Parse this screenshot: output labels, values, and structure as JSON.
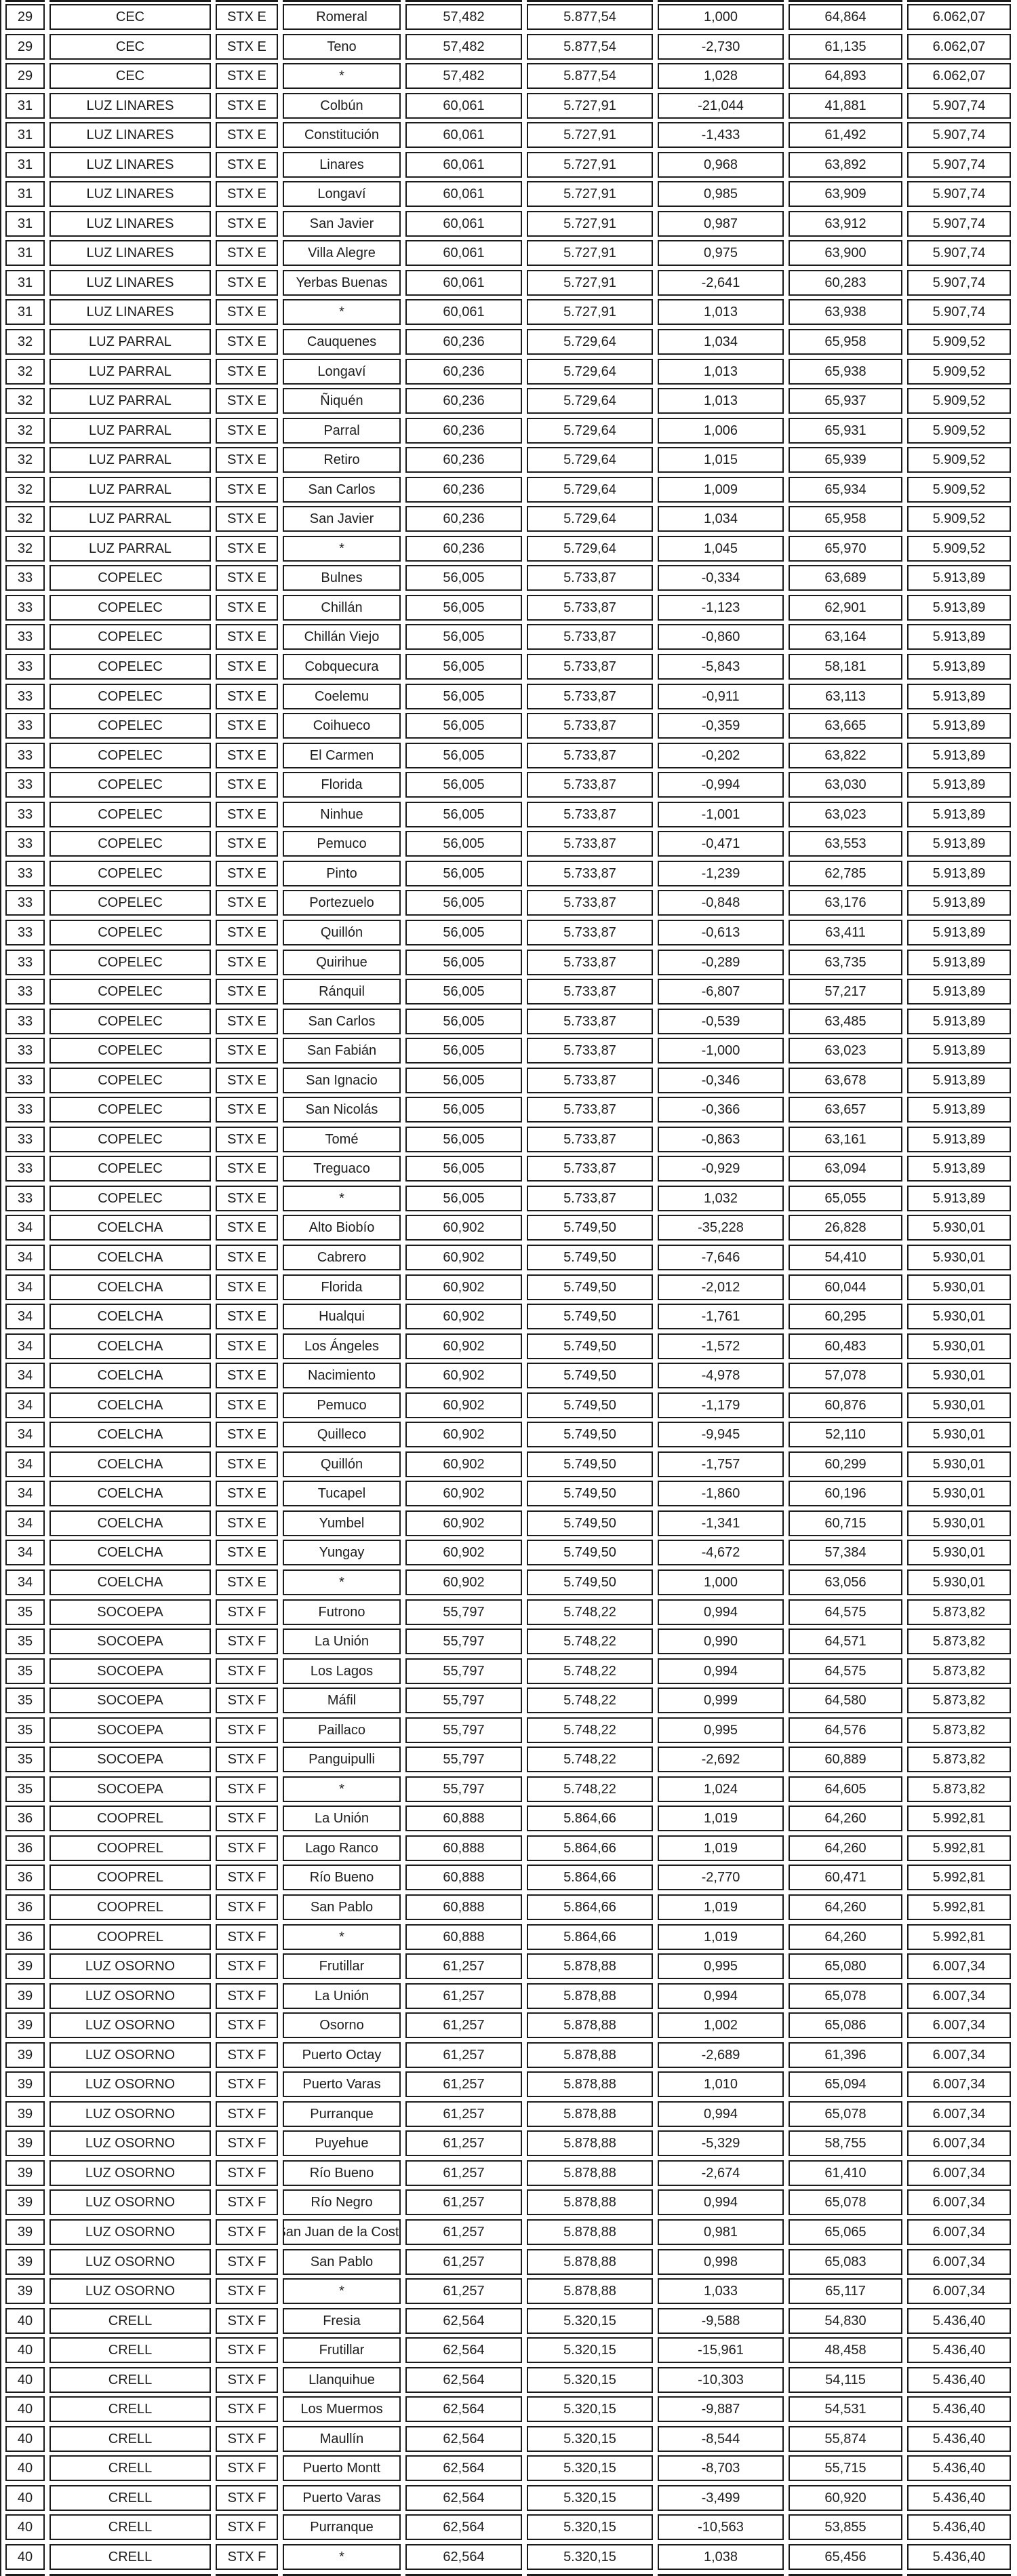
{
  "table": {
    "groups": [
      {
        "id": "29",
        "company": "CEC",
        "stx": "STX E",
        "v1": "57,482",
        "v2": "5.877,54",
        "v5": "6.062,07",
        "rows": [
          {
            "commune": "Romeral",
            "v3": "1,000",
            "v4": "64,864"
          },
          {
            "commune": "Teno",
            "v3": "-2,730",
            "v4": "61,135"
          },
          {
            "commune": "*",
            "v3": "1,028",
            "v4": "64,893"
          }
        ]
      },
      {
        "id": "31",
        "company": "LUZ LINARES",
        "stx": "STX E",
        "v1": "60,061",
        "v2": "5.727,91",
        "v5": "5.907,74",
        "rows": [
          {
            "commune": "Colbún",
            "v3": "-21,044",
            "v4": "41,881"
          },
          {
            "commune": "Constitución",
            "v3": "-1,433",
            "v4": "61,492"
          },
          {
            "commune": "Linares",
            "v3": "0,968",
            "v4": "63,892"
          },
          {
            "commune": "Longaví",
            "v3": "0,985",
            "v4": "63,909"
          },
          {
            "commune": "San Javier",
            "v3": "0,987",
            "v4": "63,912"
          },
          {
            "commune": "Villa Alegre",
            "v3": "0,975",
            "v4": "63,900"
          },
          {
            "commune": "Yerbas Buenas",
            "v3": "-2,641",
            "v4": "60,283"
          },
          {
            "commune": "*",
            "v3": "1,013",
            "v4": "63,938"
          }
        ]
      },
      {
        "id": "32",
        "company": "LUZ PARRAL",
        "stx": "STX E",
        "v1": "60,236",
        "v2": "5.729,64",
        "v5": "5.909,52",
        "rows": [
          {
            "commune": "Cauquenes",
            "v3": "1,034",
            "v4": "65,958"
          },
          {
            "commune": "Longaví",
            "v3": "1,013",
            "v4": "65,938"
          },
          {
            "commune": "Ñiquén",
            "v3": "1,013",
            "v4": "65,937"
          },
          {
            "commune": "Parral",
            "v3": "1,006",
            "v4": "65,931"
          },
          {
            "commune": "Retiro",
            "v3": "1,015",
            "v4": "65,939"
          },
          {
            "commune": "San Carlos",
            "v3": "1,009",
            "v4": "65,934"
          },
          {
            "commune": "San Javier",
            "v3": "1,034",
            "v4": "65,958"
          },
          {
            "commune": "*",
            "v3": "1,045",
            "v4": "65,970"
          }
        ]
      },
      {
        "id": "33",
        "company": "COPELEC",
        "stx": "STX E",
        "v1": "56,005",
        "v2": "5.733,87",
        "v5": "5.913,89",
        "rows": [
          {
            "commune": "Bulnes",
            "v3": "-0,334",
            "v4": "63,689"
          },
          {
            "commune": "Chillán",
            "v3": "-1,123",
            "v4": "62,901"
          },
          {
            "commune": "Chillán Viejo",
            "v3": "-0,860",
            "v4": "63,164"
          },
          {
            "commune": "Cobquecura",
            "v3": "-5,843",
            "v4": "58,181"
          },
          {
            "commune": "Coelemu",
            "v3": "-0,911",
            "v4": "63,113"
          },
          {
            "commune": "Coihueco",
            "v3": "-0,359",
            "v4": "63,665"
          },
          {
            "commune": "El Carmen",
            "v3": "-0,202",
            "v4": "63,822"
          },
          {
            "commune": "Florida",
            "v3": "-0,994",
            "v4": "63,030"
          },
          {
            "commune": "Ninhue",
            "v3": "-1,001",
            "v4": "63,023"
          },
          {
            "commune": "Pemuco",
            "v3": "-0,471",
            "v4": "63,553"
          },
          {
            "commune": "Pinto",
            "v3": "-1,239",
            "v4": "62,785"
          },
          {
            "commune": "Portezuelo",
            "v3": "-0,848",
            "v4": "63,176"
          },
          {
            "commune": "Quillón",
            "v3": "-0,613",
            "v4": "63,411"
          },
          {
            "commune": "Quirihue",
            "v3": "-0,289",
            "v4": "63,735"
          },
          {
            "commune": "Ránquil",
            "v3": "-6,807",
            "v4": "57,217"
          },
          {
            "commune": "San Carlos",
            "v3": "-0,539",
            "v4": "63,485"
          },
          {
            "commune": "San Fabián",
            "v3": "-1,000",
            "v4": "63,023"
          },
          {
            "commune": "San Ignacio",
            "v3": "-0,346",
            "v4": "63,678"
          },
          {
            "commune": "San Nicolás",
            "v3": "-0,366",
            "v4": "63,657"
          },
          {
            "commune": "Tomé",
            "v3": "-0,863",
            "v4": "63,161"
          },
          {
            "commune": "Treguaco",
            "v3": "-0,929",
            "v4": "63,094"
          },
          {
            "commune": "*",
            "v3": "1,032",
            "v4": "65,055"
          }
        ]
      },
      {
        "id": "34",
        "company": "COELCHA",
        "stx": "STX E",
        "v1": "60,902",
        "v2": "5.749,50",
        "v5": "5.930,01",
        "rows": [
          {
            "commune": "Alto Biobío",
            "v3": "-35,228",
            "v4": "26,828"
          },
          {
            "commune": "Cabrero",
            "v3": "-7,646",
            "v4": "54,410"
          },
          {
            "commune": "Florida",
            "v3": "-2,012",
            "v4": "60,044"
          },
          {
            "commune": "Hualqui",
            "v3": "-1,761",
            "v4": "60,295"
          },
          {
            "commune": "Los Ángeles",
            "v3": "-1,572",
            "v4": "60,483"
          },
          {
            "commune": "Nacimiento",
            "v3": "-4,978",
            "v4": "57,078"
          },
          {
            "commune": "Pemuco",
            "v3": "-1,179",
            "v4": "60,876"
          },
          {
            "commune": "Quilleco",
            "v3": "-9,945",
            "v4": "52,110"
          },
          {
            "commune": "Quillón",
            "v3": "-1,757",
            "v4": "60,299"
          },
          {
            "commune": "Tucapel",
            "v3": "-1,860",
            "v4": "60,196"
          },
          {
            "commune": "Yumbel",
            "v3": "-1,341",
            "v4": "60,715"
          },
          {
            "commune": "Yungay",
            "v3": "-4,672",
            "v4": "57,384"
          },
          {
            "commune": "*",
            "v3": "1,000",
            "v4": "63,056"
          }
        ]
      },
      {
        "id": "35",
        "company": "SOCOEPA",
        "stx": "STX F",
        "v1": "55,797",
        "v2": "5.748,22",
        "v5": "5.873,82",
        "rows": [
          {
            "commune": "Futrono",
            "v3": "0,994",
            "v4": "64,575"
          },
          {
            "commune": "La Unión",
            "v3": "0,990",
            "v4": "64,571"
          },
          {
            "commune": "Los Lagos",
            "v3": "0,994",
            "v4": "64,575"
          },
          {
            "commune": "Máfil",
            "v3": "0,999",
            "v4": "64,580"
          },
          {
            "commune": "Paillaco",
            "v3": "0,995",
            "v4": "64,576"
          },
          {
            "commune": "Panguipulli",
            "v3": "-2,692",
            "v4": "60,889"
          },
          {
            "commune": "*",
            "v3": "1,024",
            "v4": "64,605"
          }
        ]
      },
      {
        "id": "36",
        "company": "COOPREL",
        "stx": "STX F",
        "v1": "60,888",
        "v2": "5.864,66",
        "v5": "5.992,81",
        "rows": [
          {
            "commune": "La Unión",
            "v3": "1,019",
            "v4": "64,260"
          },
          {
            "commune": "Lago Ranco",
            "v3": "1,019",
            "v4": "64,260"
          },
          {
            "commune": "Río Bueno",
            "v3": "-2,770",
            "v4": "60,471"
          },
          {
            "commune": "San Pablo",
            "v3": "1,019",
            "v4": "64,260"
          },
          {
            "commune": "*",
            "v3": "1,019",
            "v4": "64,260"
          }
        ]
      },
      {
        "id": "39",
        "company": "LUZ OSORNO",
        "stx": "STX F",
        "v1": "61,257",
        "v2": "5.878,88",
        "v5": "6.007,34",
        "rows": [
          {
            "commune": "Frutillar",
            "v3": "0,995",
            "v4": "65,080"
          },
          {
            "commune": "La Unión",
            "v3": "0,994",
            "v4": "65,078"
          },
          {
            "commune": "Osorno",
            "v3": "1,002",
            "v4": "65,086"
          },
          {
            "commune": "Puerto Octay",
            "v3": "-2,689",
            "v4": "61,396"
          },
          {
            "commune": "Puerto Varas",
            "v3": "1,010",
            "v4": "65,094"
          },
          {
            "commune": "Purranque",
            "v3": "0,994",
            "v4": "65,078"
          },
          {
            "commune": "Puyehue",
            "v3": "-5,329",
            "v4": "58,755"
          },
          {
            "commune": "Río Bueno",
            "v3": "-2,674",
            "v4": "61,410"
          },
          {
            "commune": "Río Negro",
            "v3": "0,994",
            "v4": "65,078"
          },
          {
            "commune": "San Juan de la Costa",
            "v3": "0,981",
            "v4": "65,065"
          },
          {
            "commune": "San Pablo",
            "v3": "0,998",
            "v4": "65,083"
          },
          {
            "commune": "*",
            "v3": "1,033",
            "v4": "65,117"
          }
        ]
      },
      {
        "id": "40",
        "company": "CRELL",
        "stx": "STX F",
        "v1": "62,564",
        "v2": "5.320,15",
        "v5": "5.436,40",
        "rows": [
          {
            "commune": "Fresia",
            "v3": "-9,588",
            "v4": "54,830"
          },
          {
            "commune": "Frutillar",
            "v3": "-15,961",
            "v4": "48,458"
          },
          {
            "commune": "Llanquihue",
            "v3": "-10,303",
            "v4": "54,115"
          },
          {
            "commune": "Los Muermos",
            "v3": "-9,887",
            "v4": "54,531"
          },
          {
            "commune": "Maullín",
            "v3": "-8,544",
            "v4": "55,874"
          },
          {
            "commune": "Puerto Montt",
            "v3": "-8,703",
            "v4": "55,715"
          },
          {
            "commune": "Puerto Varas",
            "v3": "-3,499",
            "v4": "60,920"
          },
          {
            "commune": "Purranque",
            "v3": "-10,563",
            "v4": "53,855"
          },
          {
            "commune": "*",
            "v3": "1,038",
            "v4": "65,456"
          }
        ]
      }
    ]
  }
}
